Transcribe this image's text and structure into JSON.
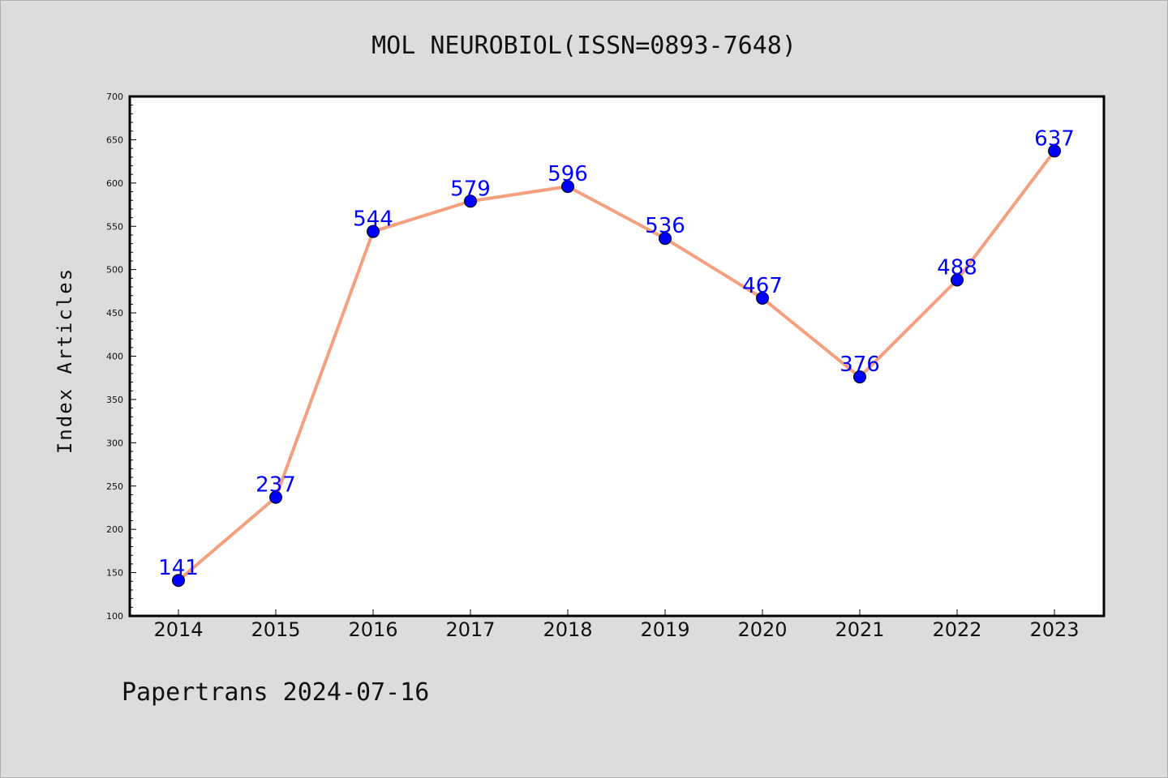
{
  "chart_data": {
    "type": "line",
    "title": "MOL NEUROBIOL(ISSN=0893-7648)",
    "xlabel": "",
    "ylabel": "Index Articles",
    "categories": [
      "2014",
      "2015",
      "2016",
      "2017",
      "2018",
      "2019",
      "2020",
      "2021",
      "2022",
      "2023"
    ],
    "values": [
      141,
      237,
      544,
      579,
      596,
      536,
      467,
      376,
      488,
      637
    ],
    "data_labels": [
      "141",
      "237",
      "544",
      "579",
      "596",
      "536",
      "467",
      "376",
      "488",
      "637"
    ],
    "ylim": [
      100,
      700
    ],
    "yticks": [
      "100",
      "150",
      "200",
      "250",
      "300",
      "350",
      "400",
      "450",
      "500",
      "550",
      "600",
      "650",
      "700"
    ],
    "grid": false,
    "legend": "none",
    "colors": {
      "line": "#f4a07f",
      "marker": "#0000ff",
      "label": "#0000ff",
      "background": "#dcdcdc",
      "plot_background": "#ffffff"
    }
  },
  "footer": {
    "source": "Papertrans 2024-07-16"
  }
}
